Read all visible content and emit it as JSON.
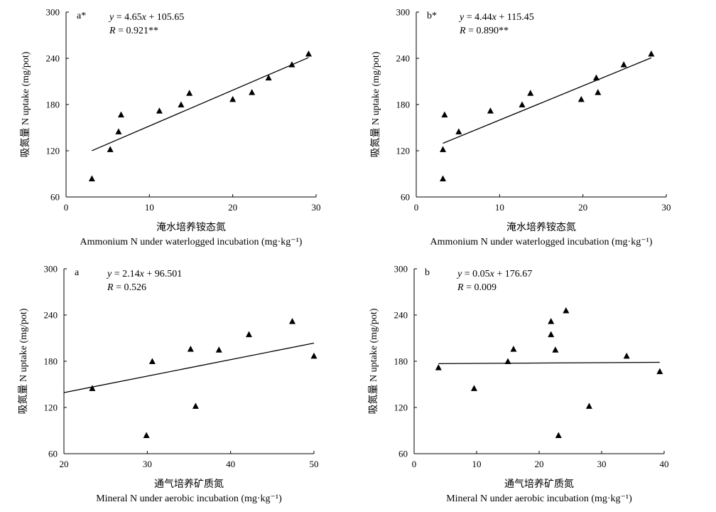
{
  "chart_data": [
    {
      "type": "scatter",
      "panel_label": "a*",
      "equation": "y = 4.65x + 105.65",
      "r_text": "R = 0.921**",
      "xlabel_cn": "淹水培养铵态氮",
      "xlabel_en": "Ammonium N under waterlogged incubation (mg·kg⁻¹)",
      "ylabel": "吸氮量 N uptake (mg/pot)",
      "xlim": [
        0,
        30
      ],
      "ylim": [
        60,
        300
      ],
      "xticks": [
        0,
        10,
        20,
        30
      ],
      "yticks": [
        60,
        120,
        180,
        240,
        300
      ],
      "points": [
        [
          3.1,
          84
        ],
        [
          5.3,
          122
        ],
        [
          6.3,
          145
        ],
        [
          6.6,
          167
        ],
        [
          11.2,
          172
        ],
        [
          13.8,
          180
        ],
        [
          14.8,
          195
        ],
        [
          20.0,
          187
        ],
        [
          22.3,
          196
        ],
        [
          24.3,
          215
        ],
        [
          27.1,
          232
        ],
        [
          29.1,
          246
        ]
      ],
      "fit": {
        "slope": 4.65,
        "intercept": 105.65,
        "x_range": [
          3.1,
          29.1
        ]
      }
    },
    {
      "type": "scatter",
      "panel_label": "b*",
      "equation": "y = 4.44x + 115.45",
      "r_text": "R = 0.890**",
      "xlabel_cn": "淹水培养铵态氮",
      "xlabel_en": "Ammonium N under waterlogged incubation (mg·kg⁻¹)",
      "ylabel": "吸氮量 N uptake (mg/pot)",
      "xlim": [
        0,
        30
      ],
      "ylim": [
        60,
        300
      ],
      "xticks": [
        0,
        10,
        20,
        30
      ],
      "yticks": [
        60,
        120,
        180,
        240,
        300
      ],
      "points": [
        [
          3.2,
          84
        ],
        [
          3.2,
          122
        ],
        [
          3.4,
          167
        ],
        [
          5.1,
          145
        ],
        [
          8.9,
          172
        ],
        [
          12.7,
          180
        ],
        [
          13.7,
          195
        ],
        [
          19.8,
          187
        ],
        [
          21.6,
          215
        ],
        [
          21.8,
          196
        ],
        [
          24.9,
          232
        ],
        [
          28.2,
          246
        ]
      ],
      "fit": {
        "slope": 4.44,
        "intercept": 115.45,
        "x_range": [
          3.2,
          28.2
        ]
      }
    },
    {
      "type": "scatter",
      "panel_label": "a",
      "equation": "y = 2.14x + 96.501",
      "r_text": "R = 0.526",
      "xlabel_cn": "通气培养矿质氮",
      "xlabel_en": "Mineral N under aerobic incubation (mg·kg⁻¹)",
      "ylabel": "吸氮量 N uptake (mg/pot)",
      "xlim": [
        20,
        50
      ],
      "ylim": [
        60,
        300
      ],
      "xticks": [
        20,
        30,
        40,
        50
      ],
      "yticks": [
        60,
        120,
        180,
        240,
        300
      ],
      "points": [
        [
          23.4,
          145
        ],
        [
          29.9,
          84
        ],
        [
          30.6,
          180
        ],
        [
          35.2,
          196
        ],
        [
          35.8,
          122
        ],
        [
          38.6,
          195
        ],
        [
          42.2,
          215
        ],
        [
          47.4,
          232
        ],
        [
          50.0,
          187
        ]
      ],
      "fit": {
        "slope": 2.14,
        "intercept": 96.501,
        "x_range": [
          20,
          50
        ]
      }
    },
    {
      "type": "scatter",
      "panel_label": "b",
      "equation": "y = 0.05x + 176.67",
      "r_text": "R = 0.009",
      "xlabel_cn": "通气培养矿质氮",
      "xlabel_en": "Mineral N under aerobic incubation (mg·kg⁻¹)",
      "ylabel": "吸氮量 N uptake (mg/pot)",
      "xlim": [
        0,
        40
      ],
      "ylim": [
        60,
        300
      ],
      "xticks": [
        0,
        10,
        20,
        30,
        40
      ],
      "yticks": [
        60,
        120,
        180,
        240,
        300
      ],
      "points": [
        [
          3.9,
          172
        ],
        [
          9.6,
          145
        ],
        [
          15.0,
          180
        ],
        [
          15.9,
          196
        ],
        [
          21.9,
          232
        ],
        [
          21.9,
          215
        ],
        [
          22.6,
          195
        ],
        [
          23.1,
          84
        ],
        [
          24.3,
          246
        ],
        [
          28.0,
          122
        ],
        [
          34.0,
          187
        ],
        [
          39.3,
          167
        ]
      ],
      "fit": {
        "slope": 0.05,
        "intercept": 176.67,
        "x_range": [
          3.9,
          39.3
        ]
      }
    }
  ]
}
